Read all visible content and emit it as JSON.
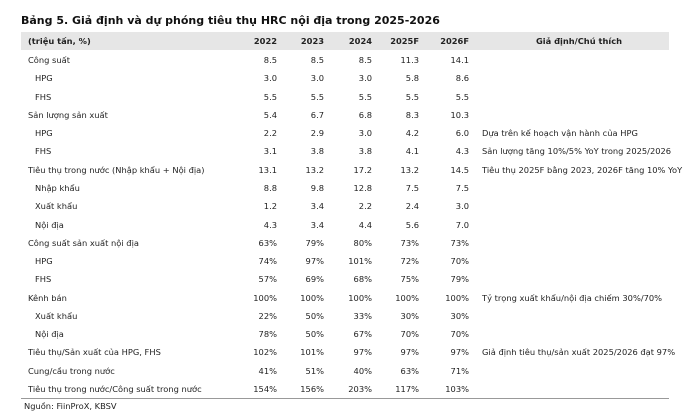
{
  "title": "Bảng 5. Giả định và dự phóng tiêu thụ HRC nội địa trong 2025-2026",
  "table": {
    "header": [
      "(triệu tấn, %)",
      "2022",
      "2023",
      "2024",
      "2025F",
      "2026F",
      "Giả định/Chú thích"
    ],
    "rows": [
      {
        "label": "Công suất",
        "values": [
          "8.5",
          "8.5",
          "8.5",
          "11.3",
          "14.1"
        ],
        "children": [
          {
            "label": "HPG",
            "values": [
              "3.0",
              "3.0",
              "3.0",
              "5.8",
              "8.6"
            ]
          },
          {
            "label": "FHS",
            "values": [
              "5.5",
              "5.5",
              "5.5",
              "5.5",
              "5.5"
            ]
          }
        ]
      },
      {
        "label": "Sản lượng sản xuất",
        "values": [
          "5.4",
          "6.7",
          "6.8",
          "8.3",
          "10.3"
        ],
        "children": [
          {
            "label": "HPG",
            "values": [
              "2.2",
              "2.9",
              "3.0",
              "4.2",
              "6.0"
            ],
            "note": "Dựa trên kế hoạch vận hành của HPG"
          },
          {
            "label": "FHS",
            "values": [
              "3.1",
              "3.8",
              "3.8",
              "4.1",
              "4.3"
            ],
            "note": "Sản lượng tăng 10%/5% YoY trong 2025/2026"
          }
        ]
      },
      {
        "label": "Tiêu thụ trong nước (Nhập khẩu + Nội địa)",
        "values": [
          "13.1",
          "13.2",
          "17.2",
          "13.2",
          "14.5"
        ],
        "note": "Tiêu thụ 2025F bằng 2023, 2026F tăng 10% YoY",
        "children": [
          {
            "label": "Nhập khẩu",
            "values": [
              "8.8",
              "9.8",
              "12.8",
              "7.5",
              "7.5"
            ]
          },
          {
            "label": "Xuất khẩu",
            "values": [
              "1.2",
              "3.4",
              "2.2",
              "2.4",
              "3.0"
            ]
          },
          {
            "label": "Nội địa",
            "values": [
              "4.3",
              "3.4",
              "4.4",
              "5.6",
              "7.0"
            ]
          }
        ]
      },
      {
        "label": "Công suất sản xuất nội địa",
        "values": [
          "63%",
          "79%",
          "80%",
          "73%",
          "73%"
        ],
        "children": [
          {
            "label": "HPG",
            "values": [
              "74%",
              "97%",
              "101%",
              "72%",
              "70%"
            ]
          },
          {
            "label": "FHS",
            "values": [
              "57%",
              "69%",
              "68%",
              "75%",
              "79%"
            ]
          }
        ]
      },
      {
        "label": "Kênh bán",
        "values": [
          "100%",
          "100%",
          "100%",
          "100%",
          "100%"
        ],
        "note": "Tỷ trọng xuất khẩu/nội địa chiếm 30%/70%",
        "children": [
          {
            "label": "Xuất khẩu",
            "values": [
              "22%",
              "50%",
              "33%",
              "30%",
              "30%"
            ]
          },
          {
            "label": "Nội địa",
            "values": [
              "78%",
              "50%",
              "67%",
              "70%",
              "70%"
            ]
          }
        ]
      },
      {
        "label": "Tiêu thụ/Sản xuất của HPG, FHS",
        "values": [
          "102%",
          "101%",
          "97%",
          "97%",
          "97%"
        ],
        "note": "Giả định tiêu thụ/sản xuất 2025/2026 đạt 97%"
      },
      {
        "label": "Cung/cầu trong nước",
        "values": [
          "41%",
          "51%",
          "40%",
          "63%",
          "71%"
        ]
      },
      {
        "label": "Tiêu thụ trong nước/Công suất trong nước",
        "values": [
          "154%",
          "156%",
          "203%",
          "117%",
          "103%"
        ]
      }
    ]
  },
  "source": "Nguồn: FiinProX, KBSV"
}
